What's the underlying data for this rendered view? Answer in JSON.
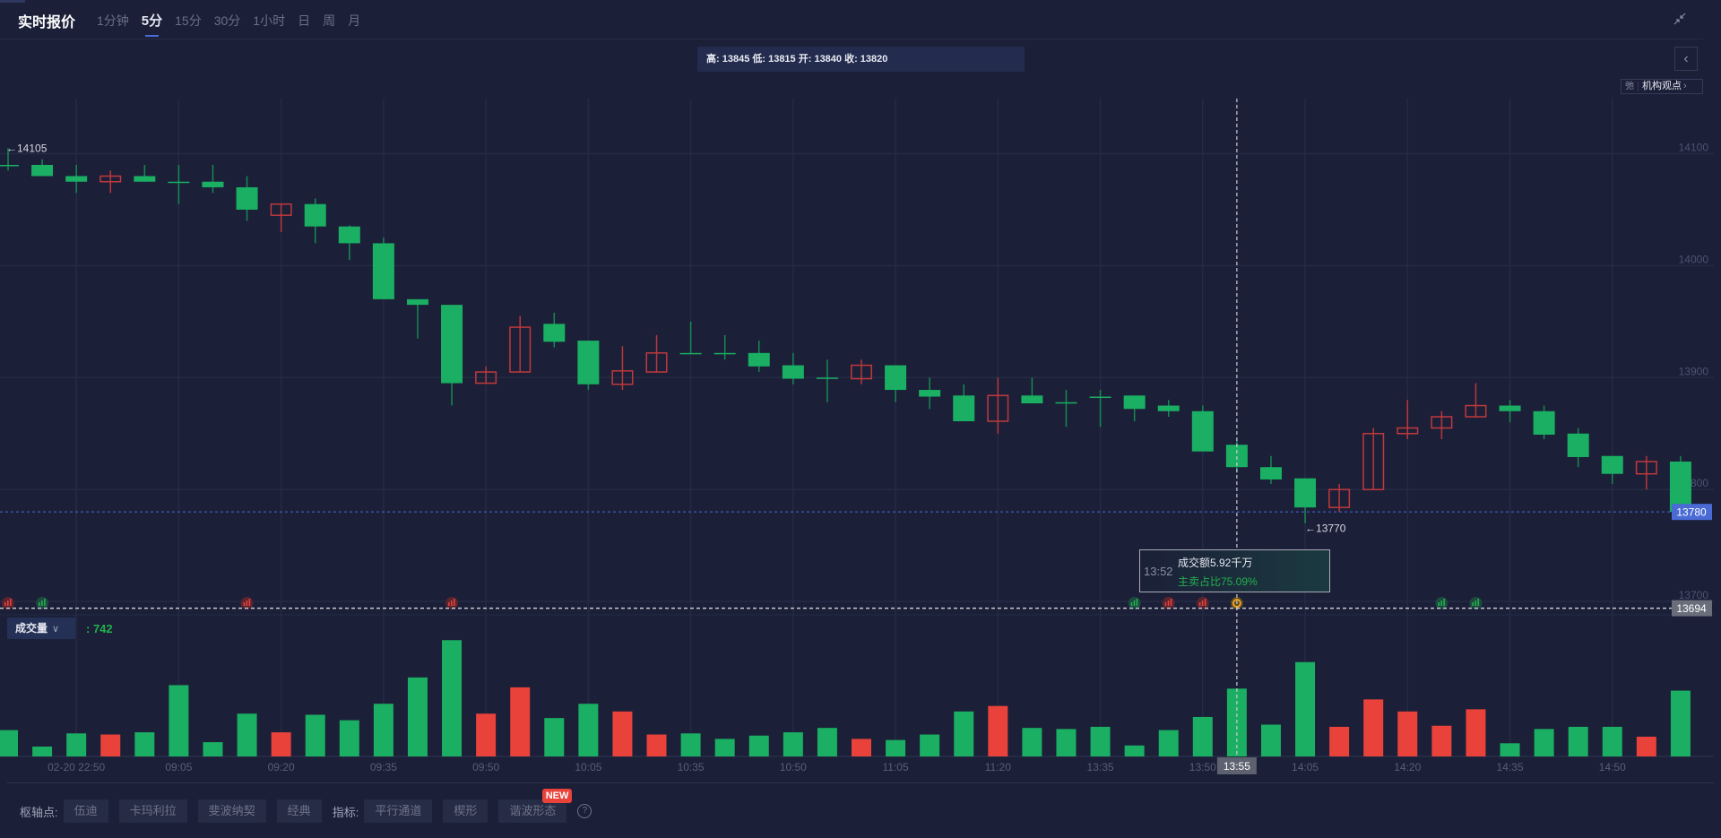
{
  "header": {
    "title": "实时报价",
    "tabs": [
      {
        "label": "1分钟",
        "active": false
      },
      {
        "label": "5分",
        "active": true
      },
      {
        "label": "15分",
        "active": false
      },
      {
        "label": "30分",
        "active": false
      },
      {
        "label": "1小时",
        "active": false
      },
      {
        "label": "日",
        "active": false
      },
      {
        "label": "周",
        "active": false
      },
      {
        "label": "月",
        "active": false
      }
    ],
    "shrink_icon": "collapse-arrows-icon"
  },
  "info_bar": "高: 13845 低: 13815 开: 13840 收: 13820",
  "side": {
    "back_icon": "chevron-left-icon",
    "viewpoint_icon": "弛",
    "viewpoint_label": "机构观点",
    "viewpoint_arrow": "›"
  },
  "colors": {
    "up": "#e8423a",
    "down": "#1aaf62",
    "grid": "#262b45",
    "last_price": "#4a6bd6",
    "background": "#1b1f38"
  },
  "chart_data": {
    "type": "candlestick",
    "interval": "5分",
    "y_ticks": [
      14100,
      14000,
      13900,
      13800,
      13700
    ],
    "ylim": [
      13690,
      14130
    ],
    "max_marker": "←14105",
    "min_marker": "←13770",
    "last_price": "13780",
    "crosshair_price": "13694",
    "crosshair_time": "13:55",
    "crosshair_index": 36,
    "time_labels": [
      {
        "i": 2,
        "t": "02-20 22:50"
      },
      {
        "i": 5,
        "t": "09:05"
      },
      {
        "i": 8,
        "t": "09:20"
      },
      {
        "i": 11,
        "t": "09:35"
      },
      {
        "i": 14,
        "t": "09:50"
      },
      {
        "i": 17,
        "t": "10:05"
      },
      {
        "i": 20,
        "t": "10:35"
      },
      {
        "i": 23,
        "t": "10:50"
      },
      {
        "i": 26,
        "t": "11:05"
      },
      {
        "i": 29,
        "t": "11:20"
      },
      {
        "i": 32,
        "t": "13:35"
      },
      {
        "i": 35,
        "t": "13:50"
      },
      {
        "i": 38,
        "t": "14:05"
      },
      {
        "i": 41,
        "t": "14:20"
      },
      {
        "i": 44,
        "t": "14:35"
      },
      {
        "i": 47,
        "t": "14:50"
      }
    ],
    "ohlc": [
      [
        14090,
        14105,
        14085,
        14090
      ],
      [
        14090,
        14095,
        14080,
        14080
      ],
      [
        14080,
        14090,
        14065,
        14075
      ],
      [
        14075,
        14085,
        14065,
        14080
      ],
      [
        14080,
        14090,
        14075,
        14075
      ],
      [
        14075,
        14090,
        14055,
        14075
      ],
      [
        14075,
        14090,
        14065,
        14070
      ],
      [
        14070,
        14080,
        14040,
        14050
      ],
      [
        14045,
        14055,
        14030,
        14055
      ],
      [
        14055,
        14060,
        14020,
        14035
      ],
      [
        14035,
        14036,
        14005,
        14020
      ],
      [
        14020,
        14025,
        13970,
        13970
      ],
      [
        13970,
        13970,
        13935,
        13965
      ],
      [
        13965,
        13965,
        13875,
        13895
      ],
      [
        13895,
        13910,
        13895,
        13905
      ],
      [
        13905,
        13955,
        13905,
        13945
      ],
      [
        13948,
        13958,
        13927,
        13932
      ],
      [
        13933,
        13933,
        13889,
        13894
      ],
      [
        13894,
        13928,
        13889,
        13906
      ],
      [
        13905,
        13938,
        13905,
        13922
      ],
      [
        13922,
        13950,
        13922,
        13922
      ],
      [
        13922,
        13938,
        13916,
        13922
      ],
      [
        13922,
        13933,
        13905,
        13910
      ],
      [
        13911,
        13922,
        13894,
        13899
      ],
      [
        13900,
        13916,
        13878,
        13900
      ],
      [
        13899,
        13916,
        13894,
        13911
      ],
      [
        13911,
        13911,
        13878,
        13889
      ],
      [
        13889,
        13900,
        13872,
        13883
      ],
      [
        13884,
        13894,
        13861,
        13861
      ],
      [
        13861,
        13900,
        13850,
        13884
      ],
      [
        13884,
        13900,
        13877,
        13877
      ],
      [
        13878,
        13889,
        13856,
        13878
      ],
      [
        13883,
        13889,
        13856,
        13883
      ],
      [
        13884,
        13884,
        13861,
        13872
      ],
      [
        13875,
        13880,
        13865,
        13870
      ],
      [
        13870,
        13875,
        13834,
        13834
      ],
      [
        13840,
        13845,
        13815,
        13820
      ],
      [
        13820,
        13830,
        13805,
        13809
      ],
      [
        13810,
        13810,
        13770,
        13784
      ],
      [
        13784,
        13805,
        13780,
        13800
      ],
      [
        13800,
        13855,
        13800,
        13850
      ],
      [
        13850,
        13880,
        13845,
        13855
      ],
      [
        13855,
        13870,
        13845,
        13865
      ],
      [
        13865,
        13895,
        13865,
        13875
      ],
      [
        13875,
        13880,
        13860,
        13870
      ],
      [
        13870,
        13875,
        13845,
        13849
      ],
      [
        13850,
        13855,
        13820,
        13829
      ],
      [
        13830,
        13830,
        13805,
        13814
      ],
      [
        13814,
        13830,
        13800,
        13825
      ],
      [
        13825,
        13830,
        13780,
        13780
      ]
    ],
    "volume": [
      288,
      108,
      252,
      240,
      264,
      780,
      156,
      468,
      264,
      456,
      396,
      576,
      864,
      1272,
      468,
      756,
      420,
      576,
      492,
      240,
      252,
      192,
      228,
      264,
      312,
      192,
      180,
      240,
      492,
      552,
      312,
      300,
      324,
      120,
      288,
      432,
      742,
      348,
      1032,
      324,
      624,
      492,
      336,
      516,
      144,
      300,
      324,
      324,
      216,
      720
    ],
    "events": [
      {
        "i": 0,
        "type": "red"
      },
      {
        "i": 1,
        "type": "green"
      },
      {
        "i": 7,
        "type": "red"
      },
      {
        "i": 13,
        "type": "red"
      },
      {
        "i": 33,
        "type": "green"
      },
      {
        "i": 34,
        "type": "red"
      },
      {
        "i": 35,
        "type": "red"
      },
      {
        "i": 36,
        "type": "coin"
      },
      {
        "i": 42,
        "type": "green"
      },
      {
        "i": 43,
        "type": "green"
      }
    ]
  },
  "volume_panel": {
    "selector_label": "成交量",
    "value": ": 742"
  },
  "tooltip": {
    "time": "13:52",
    "amount": "成交额5.92千万",
    "ratio": "主卖占比75.09%"
  },
  "toolbar": {
    "pivot_label": "枢轴点:",
    "pivot_buttons": [
      "伍迪",
      "卡玛利拉",
      "斐波纳契",
      "经典"
    ],
    "indicator_label": "指标:",
    "indicator_buttons": [
      "平行通道",
      "楔形",
      "谐波形态"
    ],
    "new_badge": "NEW",
    "help": "?"
  }
}
